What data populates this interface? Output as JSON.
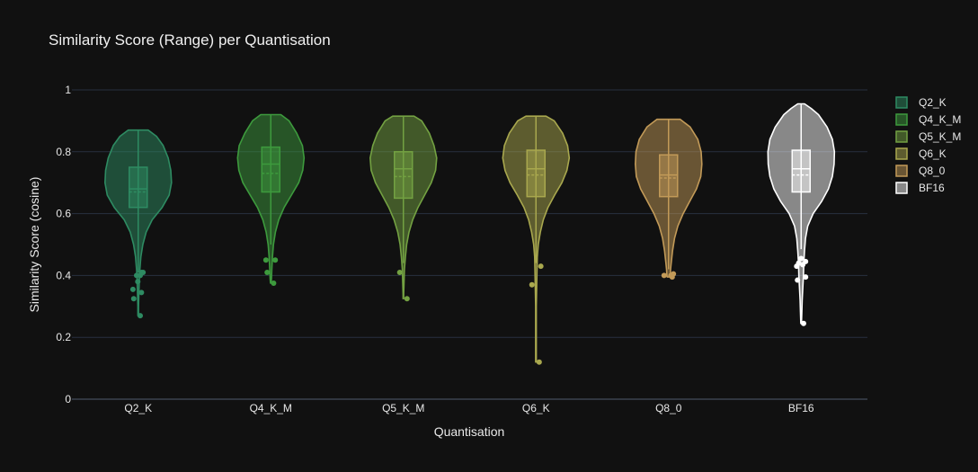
{
  "chart_data": {
    "type": "violin",
    "title": "Similarity Score (Range) per Quantisation",
    "xlabel": "Quantisation",
    "ylabel": "Similarity Score (cosine)",
    "ylim": [
      0,
      1
    ],
    "yticks": [
      0,
      0.2,
      0.4,
      0.6,
      0.8,
      1
    ],
    "ytick_labels": [
      "0",
      "0.2",
      "0.4",
      "0.6",
      "0.8",
      "1"
    ],
    "legend_position": "right",
    "grid": true,
    "background": "#111111",
    "categories": [
      "Q2_K",
      "Q4_K_M",
      "Q5_K_M",
      "Q6_K",
      "Q8_0",
      "BF16"
    ],
    "series": [
      {
        "name": "Q2_K",
        "color": "#2e8b62",
        "min": 0.27,
        "q1": 0.62,
        "median": 0.68,
        "mean": 0.67,
        "q3": 0.75,
        "max": 0.87,
        "upper_fence": 0.87,
        "lower_fence": 0.41,
        "density": [
          [
            0.87,
            0.3
          ],
          [
            0.85,
            0.55
          ],
          [
            0.82,
            0.75
          ],
          [
            0.78,
            0.9
          ],
          [
            0.74,
            0.98
          ],
          [
            0.7,
            1.0
          ],
          [
            0.66,
            0.93
          ],
          [
            0.62,
            0.72
          ],
          [
            0.58,
            0.42
          ],
          [
            0.54,
            0.24
          ],
          [
            0.5,
            0.14
          ],
          [
            0.46,
            0.08
          ],
          [
            0.42,
            0.05
          ],
          [
            0.38,
            0.03
          ],
          [
            0.34,
            0.02
          ],
          [
            0.3,
            0.01
          ],
          [
            0.27,
            0.01
          ]
        ],
        "outliers": [
          [
            0.41,
            0.4
          ],
          [
            0.4,
            -0.2
          ],
          [
            0.41,
            0.6
          ],
          [
            0.4,
            0.25
          ],
          [
            0.38,
            -0.05
          ],
          [
            0.355,
            -0.65
          ],
          [
            0.345,
            0.4
          ],
          [
            0.325,
            -0.55
          ],
          [
            0.27,
            0.25
          ]
        ]
      },
      {
        "name": "Q4_K_M",
        "color": "#3d9a3d",
        "min": 0.375,
        "q1": 0.67,
        "median": 0.76,
        "mean": 0.73,
        "q3": 0.815,
        "max": 0.92,
        "upper_fence": 0.92,
        "lower_fence": 0.5,
        "density": [
          [
            0.92,
            0.3
          ],
          [
            0.9,
            0.55
          ],
          [
            0.86,
            0.78
          ],
          [
            0.82,
            0.95
          ],
          [
            0.78,
            1.0
          ],
          [
            0.74,
            0.96
          ],
          [
            0.7,
            0.84
          ],
          [
            0.66,
            0.62
          ],
          [
            0.62,
            0.4
          ],
          [
            0.58,
            0.24
          ],
          [
            0.54,
            0.14
          ],
          [
            0.5,
            0.08
          ],
          [
            0.46,
            0.05
          ],
          [
            0.42,
            0.03
          ],
          [
            0.39,
            0.02
          ],
          [
            0.375,
            0.01
          ]
        ],
        "outliers": [
          [
            0.45,
            -0.6
          ],
          [
            0.45,
            0.55
          ],
          [
            0.41,
            -0.45
          ],
          [
            0.375,
            0.35
          ]
        ]
      },
      {
        "name": "Q5_K_M",
        "color": "#73a142",
        "min": 0.325,
        "q1": 0.65,
        "median": 0.745,
        "mean": 0.72,
        "q3": 0.8,
        "max": 0.915,
        "upper_fence": 0.915,
        "lower_fence": 0.44,
        "density": [
          [
            0.915,
            0.32
          ],
          [
            0.9,
            0.55
          ],
          [
            0.86,
            0.78
          ],
          [
            0.82,
            0.92
          ],
          [
            0.78,
            1.0
          ],
          [
            0.74,
            0.97
          ],
          [
            0.7,
            0.84
          ],
          [
            0.66,
            0.64
          ],
          [
            0.62,
            0.44
          ],
          [
            0.58,
            0.28
          ],
          [
            0.54,
            0.17
          ],
          [
            0.5,
            0.1
          ],
          [
            0.46,
            0.06
          ],
          [
            0.42,
            0.03
          ],
          [
            0.38,
            0.02
          ],
          [
            0.34,
            0.01
          ],
          [
            0.325,
            0.01
          ]
        ],
        "outliers": [
          [
            0.41,
            -0.45
          ],
          [
            0.325,
            0.45
          ]
        ]
      },
      {
        "name": "Q6_K",
        "color": "#a9a84e",
        "min": 0.12,
        "q1": 0.655,
        "median": 0.745,
        "mean": 0.725,
        "q3": 0.805,
        "max": 0.915,
        "upper_fence": 0.915,
        "lower_fence": 0.44,
        "density": [
          [
            0.915,
            0.3
          ],
          [
            0.9,
            0.55
          ],
          [
            0.86,
            0.8
          ],
          [
            0.82,
            0.95
          ],
          [
            0.78,
            1.0
          ],
          [
            0.74,
            0.93
          ],
          [
            0.7,
            0.78
          ],
          [
            0.66,
            0.56
          ],
          [
            0.62,
            0.36
          ],
          [
            0.58,
            0.22
          ],
          [
            0.54,
            0.13
          ],
          [
            0.5,
            0.07
          ],
          [
            0.46,
            0.04
          ],
          [
            0.42,
            0.03
          ],
          [
            0.36,
            0.02
          ],
          [
            0.3,
            0.01
          ],
          [
            0.2,
            0.01
          ],
          [
            0.12,
            0.01
          ]
        ],
        "outliers": [
          [
            0.43,
            0.6
          ],
          [
            0.37,
            -0.5
          ],
          [
            0.12,
            0.4
          ]
        ]
      },
      {
        "name": "Q8_0",
        "color": "#c29a58",
        "min": 0.395,
        "q1": 0.655,
        "median": 0.725,
        "mean": 0.715,
        "q3": 0.79,
        "max": 0.905,
        "upper_fence": 0.905,
        "lower_fence": 0.42,
        "density": [
          [
            0.905,
            0.35
          ],
          [
            0.88,
            0.65
          ],
          [
            0.84,
            0.88
          ],
          [
            0.8,
            0.98
          ],
          [
            0.76,
            1.0
          ],
          [
            0.72,
            0.97
          ],
          [
            0.68,
            0.84
          ],
          [
            0.64,
            0.64
          ],
          [
            0.6,
            0.44
          ],
          [
            0.56,
            0.28
          ],
          [
            0.52,
            0.18
          ],
          [
            0.48,
            0.12
          ],
          [
            0.44,
            0.08
          ],
          [
            0.42,
            0.06
          ],
          [
            0.4,
            0.05
          ],
          [
            0.395,
            0.04
          ]
        ],
        "outliers": [
          [
            0.4,
            -0.55
          ],
          [
            0.4,
            0.3
          ],
          [
            0.395,
            0.45
          ],
          [
            0.405,
            0.6
          ]
        ]
      },
      {
        "name": "BF16",
        "color": "#ffffff",
        "min": 0.245,
        "q1": 0.67,
        "median": 0.745,
        "mean": 0.725,
        "q3": 0.805,
        "max": 0.955,
        "upper_fence": 0.955,
        "lower_fence": 0.485,
        "density": [
          [
            0.955,
            0.1
          ],
          [
            0.94,
            0.3
          ],
          [
            0.92,
            0.52
          ],
          [
            0.88,
            0.78
          ],
          [
            0.84,
            0.94
          ],
          [
            0.8,
            1.0
          ],
          [
            0.76,
            0.99
          ],
          [
            0.72,
            0.94
          ],
          [
            0.68,
            0.82
          ],
          [
            0.64,
            0.62
          ],
          [
            0.6,
            0.36
          ],
          [
            0.56,
            0.2
          ],
          [
            0.52,
            0.13
          ],
          [
            0.48,
            0.1
          ],
          [
            0.44,
            0.08
          ],
          [
            0.4,
            0.07
          ],
          [
            0.36,
            0.05
          ],
          [
            0.32,
            0.03
          ],
          [
            0.28,
            0.02
          ],
          [
            0.245,
            0.01
          ]
        ],
        "outliers": [
          [
            0.455,
            0.0
          ],
          [
            0.44,
            -0.3
          ],
          [
            0.435,
            0.2
          ],
          [
            0.445,
            0.55
          ],
          [
            0.43,
            -0.55
          ],
          [
            0.395,
            0.55
          ],
          [
            0.385,
            -0.45
          ],
          [
            0.245,
            0.3
          ]
        ]
      }
    ]
  }
}
